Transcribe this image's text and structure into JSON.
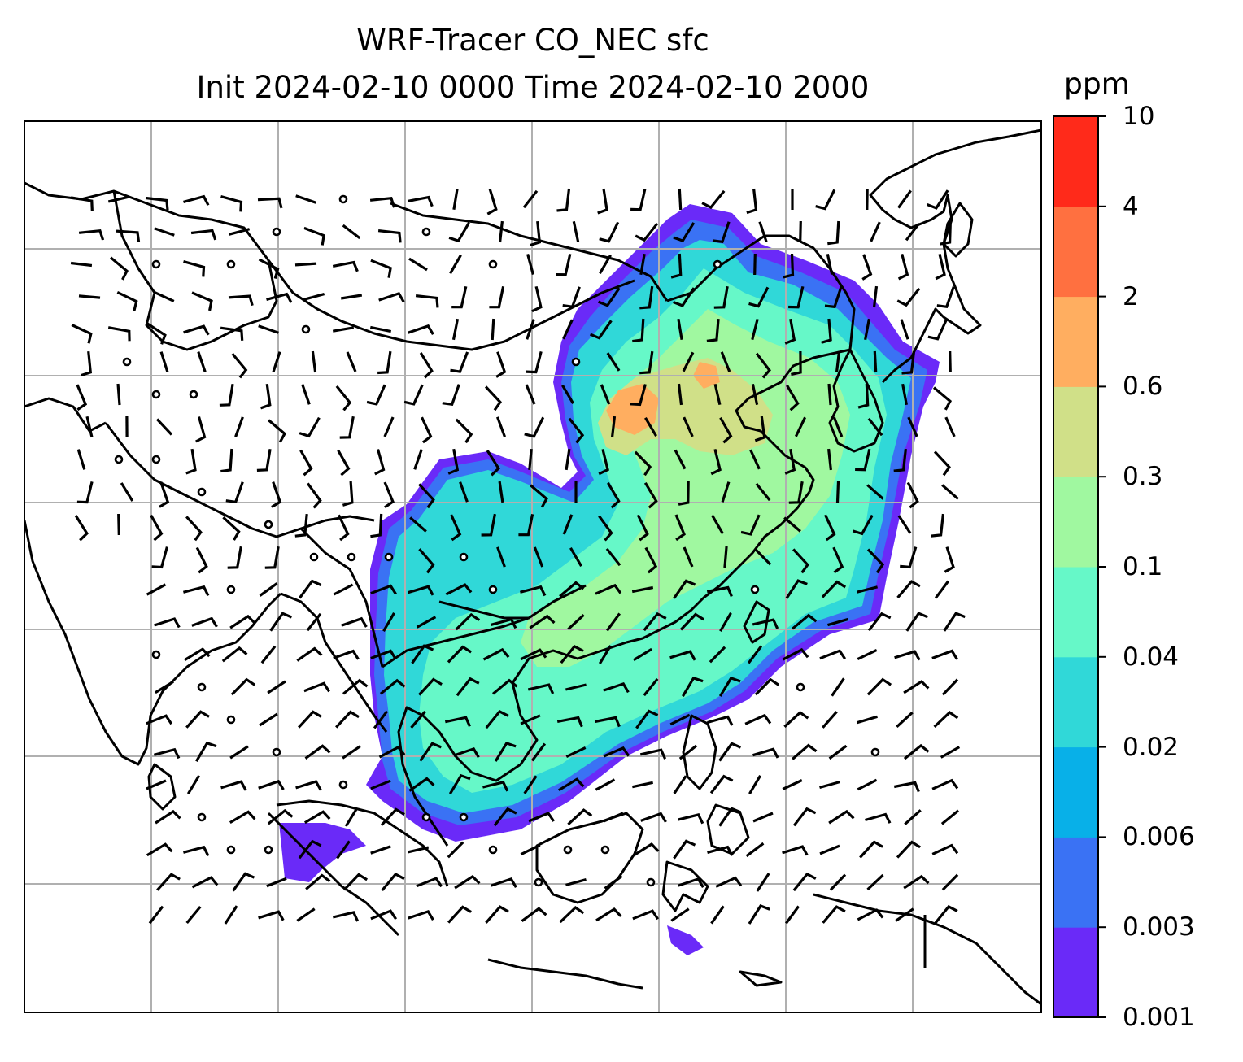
{
  "title": {
    "line1": "WRF-Tracer CO_NEC sfc",
    "line2": "Init 2024-02-10 0000 Time 2024-02-10 2000"
  },
  "colorbar": {
    "unit": "ppm",
    "ticks": [
      "0.001",
      "0.003",
      "0.006",
      "0.02",
      "0.04",
      "0.1",
      "0.3",
      "0.6",
      "2",
      "4",
      "10"
    ],
    "colors": [
      "#6a2af8",
      "#3a72f4",
      "#08b0e8",
      "#30d8d8",
      "#66f8c8",
      "#a0f8a0",
      "#d0e088",
      "#ffae60",
      "#ff7040",
      "#ff2a1a"
    ]
  },
  "map": {
    "region": "East & Southeast Asia",
    "layers": [
      "coastlines",
      "country-borders",
      "gridlines",
      "tracer-concentration-filled-contours",
      "wind-barbs"
    ],
    "tracer": "CO_NEC",
    "level": "sfc"
  }
}
